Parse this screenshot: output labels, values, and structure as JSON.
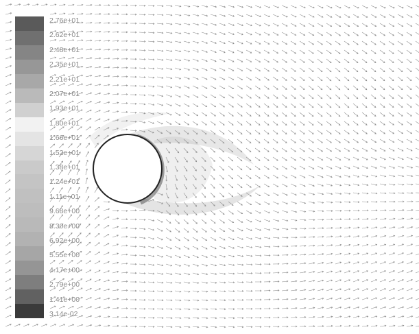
{
  "legend": {
    "labels": [
      "2.76e+01",
      "2.62e+01",
      "2.48e+01",
      "2.35e+01",
      "2.21e+01",
      "2.07e+01",
      "1.93e+01",
      "1.80e+01",
      "1.66e+01",
      "1.52e+01",
      "1.38e+01",
      "1.24e+01",
      "1.11e+01",
      "9.68e+00",
      "8.30e+00",
      "6.92e+00",
      "5.55e+00",
      "4.17e+00",
      "2.79e+00",
      "1.41e+00",
      "3.14e-02"
    ],
    "colors": [
      "#5a5a5a",
      "#707070",
      "#858585",
      "#979797",
      "#a8a8a8",
      "#bababa",
      "#d0d0d0",
      "#f2f2f2",
      "#e4e4e4",
      "#d6d6d6",
      "#cacaca",
      "#c4c4c4",
      "#c0c0c0",
      "#bdbdbd",
      "#b9b9b9",
      "#b2b2b2",
      "#a6a6a6",
      "#959595",
      "#7e7e7e",
      "#616161",
      "#3a3a3a"
    ]
  },
  "obstacle": {
    "shape": "circle",
    "fill": "#ffffff",
    "outline": "#222222"
  },
  "vector_color": "#8c8c8c"
}
